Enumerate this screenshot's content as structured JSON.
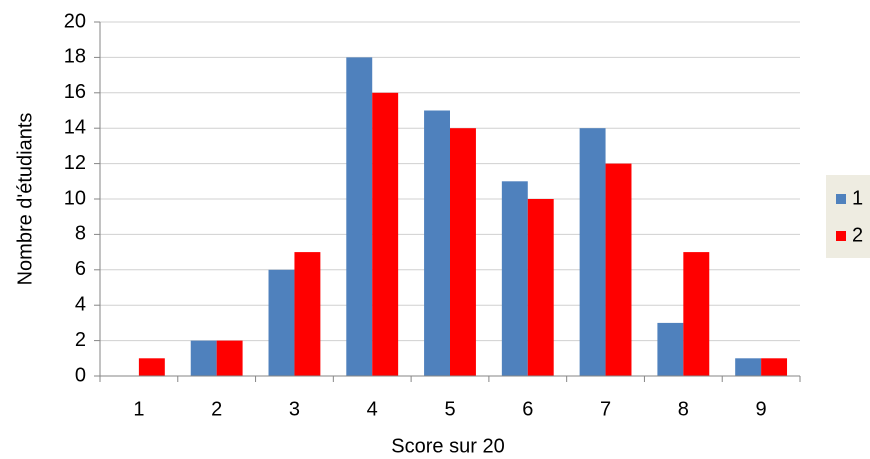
{
  "chart_data": {
    "type": "bar",
    "x_label": "Score sur 20",
    "y_label": "Nombre d'étudiants",
    "categories": [
      "1",
      "2",
      "3",
      "4",
      "5",
      "6",
      "7",
      "8",
      "9"
    ],
    "series": [
      {
        "name": "1",
        "color": "#4f81bd",
        "values": [
          0,
          2,
          6,
          18,
          15,
          11,
          14,
          3,
          1
        ]
      },
      {
        "name": "2",
        "color": "#ff0000",
        "values": [
          1,
          2,
          7,
          16,
          14,
          10,
          12,
          7,
          1
        ]
      }
    ],
    "ylim": [
      0,
      20
    ],
    "yticks": [
      0,
      2,
      4,
      6,
      8,
      10,
      12,
      14,
      16,
      18,
      20
    ],
    "grid": true,
    "legend": "right"
  }
}
